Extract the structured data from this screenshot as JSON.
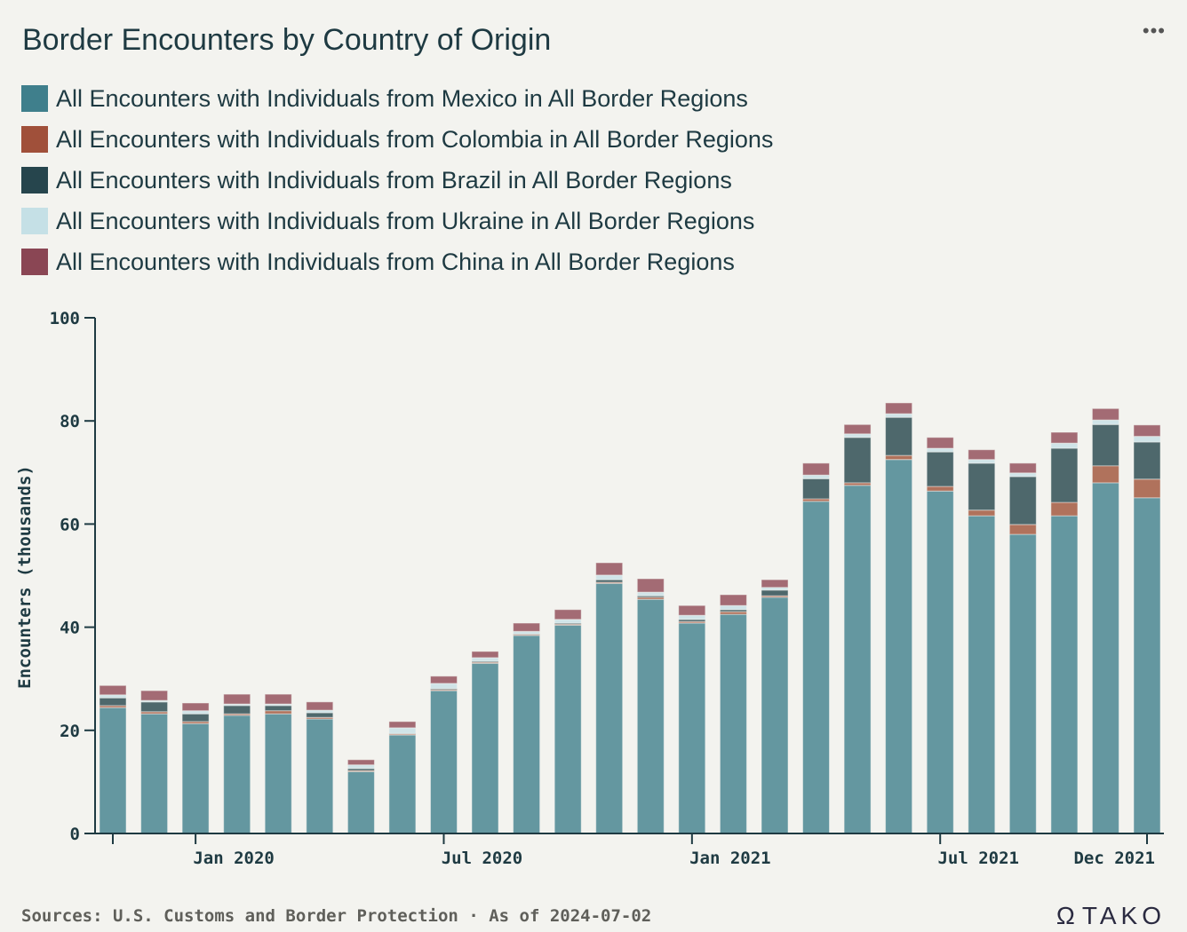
{
  "header": {
    "title": "Border Encounters by Country of Origin",
    "more_icon": "•••"
  },
  "footer": {
    "sources": "Sources: U.S. Customs and Border Protection · As of 2024-07-02",
    "logo_text": "TAKO",
    "logo_icon": "Ω"
  },
  "chart_data": {
    "type": "bar",
    "stacked": true,
    "title": "Border Encounters by Country of Origin",
    "xlabel": "",
    "ylabel": "Encounters (thousands)",
    "ylim": [
      0,
      100
    ],
    "yticks": [
      0,
      20,
      40,
      60,
      80,
      100
    ],
    "xtick_labels": [
      {
        "label": "Jan 2020",
        "index": 2
      },
      {
        "label": "Jul 2020",
        "index": 8
      },
      {
        "label": "Jan 2021",
        "index": 14
      },
      {
        "label": "Jul 2021",
        "index": 20
      },
      {
        "label": "Dec 2021",
        "index": 25
      }
    ],
    "legend_position": "top-left",
    "categories": [
      "Nov 2019",
      "Dec 2019",
      "Jan 2020",
      "Feb 2020",
      "Mar 2020",
      "Apr 2020",
      "May 2020",
      "Jun 2020",
      "Jul 2020",
      "Aug 2020",
      "Sep 2020",
      "Oct 2020",
      "Nov 2020",
      "Dec 2020",
      "Jan 2021",
      "Feb 2021",
      "Mar 2021",
      "Apr 2021",
      "May 2021",
      "Jun 2021",
      "Jul 2021",
      "Aug 2021",
      "Sep 2021",
      "Oct 2021",
      "Nov 2021",
      "Dec 2021"
    ],
    "series": [
      {
        "name": "All Encounters with Individuals from Mexico in All Border Regions",
        "color": "#3f7f8c",
        "bar_color": "#6497a0",
        "values": [
          24.4,
          23.2,
          21.3,
          22.9,
          23.2,
          22.2,
          12.0,
          19.1,
          27.7,
          33.0,
          38.4,
          40.4,
          48.5,
          45.4,
          40.8,
          42.5,
          45.8,
          64.4,
          67.5,
          72.5,
          66.4,
          61.6,
          58.0,
          61.6,
          68.0,
          65.1
        ]
      },
      {
        "name": "All Encounters with Individuals from Colombia in All Border Regions",
        "color": "#a0503a",
        "bar_color": "#b0725c",
        "values": [
          0.4,
          0.4,
          0.4,
          0.3,
          0.6,
          0.3,
          0.2,
          0.2,
          0.2,
          0.2,
          0.2,
          0.2,
          0.2,
          0.4,
          0.3,
          0.5,
          0.3,
          0.5,
          0.5,
          0.8,
          0.9,
          1.1,
          1.9,
          2.6,
          3.3,
          3.6
        ]
      },
      {
        "name": "All Encounters with Individuals from Brazil in All Border Regions",
        "color": "#26454d",
        "bar_color": "#4e686c",
        "values": [
          1.5,
          1.9,
          1.5,
          1.6,
          1.0,
          0.9,
          0.4,
          0.1,
          0.2,
          0.2,
          0.1,
          0.2,
          0.5,
          0.3,
          0.4,
          0.4,
          1.1,
          3.9,
          8.8,
          7.4,
          6.7,
          9.1,
          9.3,
          10.5,
          8.0,
          7.2
        ]
      },
      {
        "name": "All Encounters with Individuals from Ukraine in All Border Regions",
        "color": "#c5e0e6",
        "bar_color": "#d0e4e8",
        "values": [
          0.6,
          0.3,
          0.6,
          0.3,
          0.3,
          0.5,
          0.7,
          1.1,
          1.0,
          0.7,
          0.5,
          0.7,
          0.9,
          0.7,
          0.8,
          0.8,
          0.5,
          0.7,
          0.7,
          0.7,
          0.7,
          0.7,
          0.7,
          1.0,
          0.9,
          1.1
        ]
      },
      {
        "name": "All Encounters with Individuals from China in All Border Regions",
        "color": "#8a4654",
        "bar_color": "#a36b74",
        "values": [
          1.8,
          1.9,
          1.5,
          1.9,
          1.9,
          1.6,
          1.0,
          1.2,
          1.4,
          1.2,
          1.6,
          1.9,
          2.4,
          2.6,
          1.9,
          2.1,
          1.5,
          2.3,
          1.8,
          2.1,
          2.1,
          1.9,
          1.9,
          2.1,
          2.2,
          2.2
        ]
      }
    ]
  }
}
